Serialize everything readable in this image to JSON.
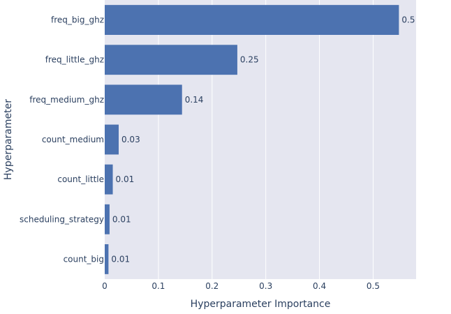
{
  "chart_data": {
    "type": "bar",
    "orientation": "horizontal",
    "categories": [
      "freq_big_ghz",
      "freq_little_ghz",
      "freq_medium_ghz",
      "count_medium",
      "count_little",
      "scheduling_strategy",
      "count_big"
    ],
    "values": [
      0.548,
      0.247,
      0.144,
      0.026,
      0.015,
      0.009,
      0.007
    ],
    "value_labels": [
      "0.5",
      "0.25",
      "0.14",
      "0.03",
      "0.01",
      "0.01",
      "0.01"
    ],
    "title": "",
    "xlabel": "Hyperparameter Importance",
    "ylabel": "Hyperparameter",
    "xlim": [
      0,
      0.58
    ],
    "xticks": [
      0,
      0.1,
      0.2,
      0.3,
      0.4,
      0.5
    ],
    "xtick_labels": [
      "0",
      "0.1",
      "0.2",
      "0.3",
      "0.4",
      "0.5"
    ],
    "grid": true,
    "legend": "none",
    "colors": {
      "bar": "#4c72b0",
      "plot_background": "#e5e6f0",
      "grid": "#ffffff",
      "text": "#2a3f5f"
    }
  }
}
